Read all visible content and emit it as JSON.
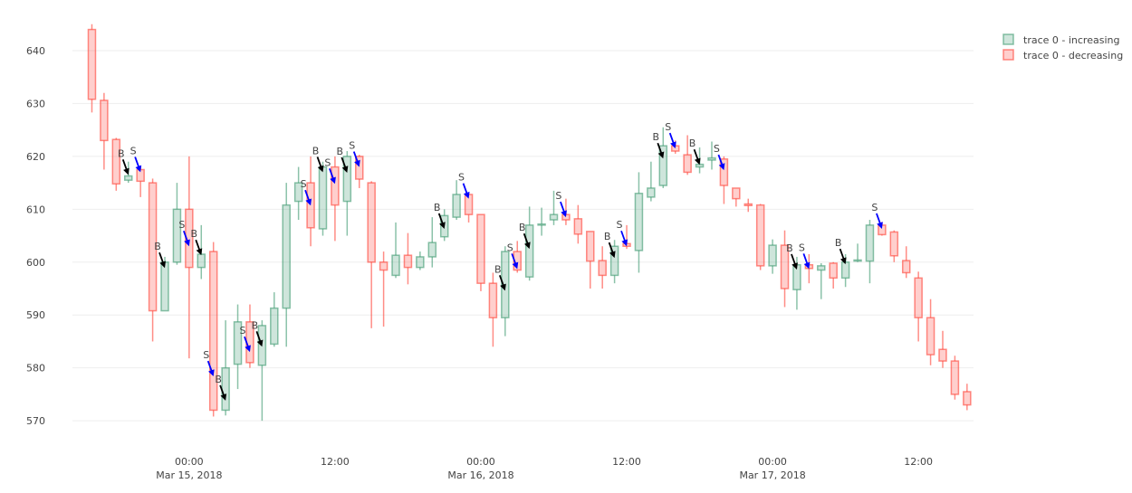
{
  "chart_data": {
    "type": "candlestick",
    "x": [
      "2018-03-14 16:00",
      "2018-03-14 17:00",
      "2018-03-14 18:00",
      "2018-03-14 19:00",
      "2018-03-14 20:00",
      "2018-03-14 21:00",
      "2018-03-14 22:00",
      "2018-03-14 23:00",
      "2018-03-15 00:00",
      "2018-03-15 01:00",
      "2018-03-15 02:00",
      "2018-03-15 03:00",
      "2018-03-15 04:00",
      "2018-03-15 05:00",
      "2018-03-15 06:00",
      "2018-03-15 07:00",
      "2018-03-15 08:00",
      "2018-03-15 09:00",
      "2018-03-15 10:00",
      "2018-03-15 11:00",
      "2018-03-15 12:00",
      "2018-03-15 13:00",
      "2018-03-15 14:00",
      "2018-03-15 15:00",
      "2018-03-15 16:00",
      "2018-03-15 17:00",
      "2018-03-15 18:00",
      "2018-03-15 19:00",
      "2018-03-15 20:00",
      "2018-03-15 21:00",
      "2018-03-15 22:00",
      "2018-03-15 23:00",
      "2018-03-16 00:00",
      "2018-03-16 01:00",
      "2018-03-16 02:00",
      "2018-03-16 03:00",
      "2018-03-16 04:00",
      "2018-03-16 05:00",
      "2018-03-16 06:00",
      "2018-03-16 07:00",
      "2018-03-16 08:00",
      "2018-03-16 09:00",
      "2018-03-16 10:00",
      "2018-03-16 11:00",
      "2018-03-16 12:00",
      "2018-03-16 13:00",
      "2018-03-16 14:00",
      "2018-03-16 15:00",
      "2018-03-16 16:00",
      "2018-03-16 17:00",
      "2018-03-16 18:00",
      "2018-03-16 19:00",
      "2018-03-16 20:00",
      "2018-03-16 21:00",
      "2018-03-16 22:00",
      "2018-03-16 23:00",
      "2018-03-17 00:00",
      "2018-03-17 01:00",
      "2018-03-17 02:00",
      "2018-03-17 03:00",
      "2018-03-17 04:00",
      "2018-03-17 05:00",
      "2018-03-17 06:00",
      "2018-03-17 07:00",
      "2018-03-17 08:00",
      "2018-03-17 09:00",
      "2018-03-17 10:00",
      "2018-03-17 11:00",
      "2018-03-17 12:00",
      "2018-03-17 13:00",
      "2018-03-17 14:00",
      "2018-03-17 15:00",
      "2018-03-17 16:00"
    ],
    "series": [
      {
        "name": "trace 0",
        "open": [
          644,
          630.6,
          623.2,
          615.5,
          617.5,
          615,
          590.8,
          600,
          610,
          599,
          602,
          572,
          580.7,
          588.7,
          580.5,
          584.5,
          591.3,
          611.5,
          615,
          606.3,
          618,
          611.5,
          620,
          615,
          600,
          597.5,
          601.3,
          599,
          601,
          604.8,
          608.5,
          612.8,
          609,
          596,
          589.5,
          602,
          597.2,
          607,
          608,
          609,
          608.2,
          605.8,
          600.3,
          597.5,
          603.5,
          602.2,
          612.3,
          614.5,
          622,
          620.3,
          618,
          619.3,
          619.5,
          614,
          611,
          610.8,
          599.3,
          603.2,
          594.8,
          599.5,
          598.5,
          599.8,
          597,
          600.2,
          600.2,
          607,
          605.7,
          600.3,
          597,
          589.5,
          583.5,
          581.3,
          575.5
        ],
        "high": [
          645,
          632,
          623.5,
          619,
          618,
          615.8,
          601,
          615,
          620,
          607,
          603.8,
          589,
          592,
          592,
          589,
          594.3,
          615,
          618,
          620,
          619,
          620,
          621,
          620.3,
          615.3,
          602,
          607.5,
          605.5,
          602,
          608.5,
          610,
          615.5,
          613,
          609,
          598,
          603,
          604,
          610.5,
          610.3,
          613.5,
          612,
          610.8,
          605.8,
          603,
          604.2,
          607,
          617,
          619,
          625.5,
          623,
          624,
          621.7,
          622.8,
          620,
          614,
          612,
          611,
          604.3,
          606,
          601,
          601.5,
          599.8,
          600,
          601.5,
          603.5,
          608,
          607.6,
          606,
          603,
          598.2,
          593,
          587,
          582.3,
          577
        ],
        "low": [
          628.3,
          617.5,
          613.5,
          615,
          612.3,
          585,
          590.8,
          599.5,
          581.8,
          596.8,
          570.8,
          571,
          576,
          580,
          570,
          584,
          584,
          608,
          603,
          605,
          604,
          605,
          614,
          587.5,
          587.8,
          597,
          595.8,
          598.5,
          599,
          604,
          608,
          607.5,
          594.5,
          584,
          586,
          598,
          596.5,
          605,
          607,
          607,
          603.5,
          595,
          595,
          596,
          602.5,
          598,
          611.5,
          614,
          620.5,
          616.5,
          616.8,
          617.5,
          611,
          610.5,
          609.5,
          598.5,
          597.8,
          591.5,
          591,
          596,
          593,
          595,
          595.3,
          600,
          596,
          605,
          600,
          597,
          585,
          580.5,
          580,
          574,
          572
        ],
        "close": [
          630.8,
          623,
          614.8,
          616.3,
          615.3,
          590.8,
          600,
          610,
          599,
          601.5,
          572,
          580,
          588.7,
          581,
          588,
          591.3,
          610.8,
          615,
          606.5,
          618,
          610.8,
          620,
          615.7,
          600,
          598.5,
          601.3,
          599,
          601,
          603.7,
          608.8,
          612.8,
          609,
          596,
          589.5,
          602,
          598.5,
          607,
          607.2,
          609,
          608,
          605.3,
          600.2,
          597.5,
          603,
          603,
          613,
          614,
          622,
          621,
          617,
          618.5,
          619.7,
          614.5,
          612,
          610.7,
          599.3,
          603.2,
          595,
          599.5,
          598.8,
          599.3,
          597,
          600,
          600.4,
          607,
          605.2,
          601.2,
          598,
          589.5,
          582.5,
          581.3,
          575,
          573
        ]
      }
    ],
    "increasing": {
      "name": "trace 0 - increasing",
      "color": "#3D9970"
    },
    "decreasing": {
      "name": "trace 0 - decreasing",
      "color": "#FF4136"
    },
    "annotations": [
      {
        "x": "2018-03-14 19:00",
        "y": 616.5,
        "text": "B",
        "arrowcolor": "#000000"
      },
      {
        "x": "2018-03-14 20:00",
        "y": 617,
        "text": "S",
        "arrowcolor": "#0000ff"
      },
      {
        "x": "2018-03-14 22:00",
        "y": 598.9,
        "text": "B",
        "arrowcolor": "#000000"
      },
      {
        "x": "2018-03-15 00:00",
        "y": 603,
        "text": "S",
        "arrowcolor": "#0000ff"
      },
      {
        "x": "2018-03-15 01:00",
        "y": 601.3,
        "text": "B",
        "arrowcolor": "#000000"
      },
      {
        "x": "2018-03-15 02:00",
        "y": 578.4,
        "text": "S",
        "arrowcolor": "#0000ff"
      },
      {
        "x": "2018-03-15 03:00",
        "y": 573.8,
        "text": "B",
        "arrowcolor": "#000000"
      },
      {
        "x": "2018-03-15 05:00",
        "y": 583,
        "text": "S",
        "arrowcolor": "#0000ff"
      },
      {
        "x": "2018-03-15 06:00",
        "y": 584,
        "text": "B",
        "arrowcolor": "#000000"
      },
      {
        "x": "2018-03-15 10:00",
        "y": 610.7,
        "text": "S",
        "arrowcolor": "#0000ff"
      },
      {
        "x": "2018-03-15 11:00",
        "y": 617,
        "text": "B",
        "arrowcolor": "#000000"
      },
      {
        "x": "2018-03-15 12:00",
        "y": 614.8,
        "text": "S",
        "arrowcolor": "#0000ff"
      },
      {
        "x": "2018-03-15 13:00",
        "y": 616.9,
        "text": "B",
        "arrowcolor": "#000000"
      },
      {
        "x": "2018-03-15 14:00",
        "y": 618,
        "text": "S",
        "arrowcolor": "#0000ff"
      },
      {
        "x": "2018-03-15 21:00",
        "y": 606.3,
        "text": "B",
        "arrowcolor": "#000000"
      },
      {
        "x": "2018-03-15 23:00",
        "y": 612,
        "text": "S",
        "arrowcolor": "#0000ff"
      },
      {
        "x": "2018-03-16 02:00",
        "y": 594.6,
        "text": "B",
        "arrowcolor": "#000000"
      },
      {
        "x": "2018-03-16 03:00",
        "y": 598.7,
        "text": "S",
        "arrowcolor": "#0000ff"
      },
      {
        "x": "2018-03-16 04:00",
        "y": 602.5,
        "text": "B",
        "arrowcolor": "#000000"
      },
      {
        "x": "2018-03-16 07:00",
        "y": 608.5,
        "text": "S",
        "arrowcolor": "#0000ff"
      },
      {
        "x": "2018-03-16 11:00",
        "y": 600.8,
        "text": "B",
        "arrowcolor": "#000000"
      },
      {
        "x": "2018-03-16 12:00",
        "y": 603,
        "text": "S",
        "arrowcolor": "#0000ff"
      },
      {
        "x": "2018-03-16 15:00",
        "y": 619.6,
        "text": "B",
        "arrowcolor": "#000000"
      },
      {
        "x": "2018-03-16 16:00",
        "y": 621.5,
        "text": "S",
        "arrowcolor": "#0000ff"
      },
      {
        "x": "2018-03-16 18:00",
        "y": 618.4,
        "text": "B",
        "arrowcolor": "#000000"
      },
      {
        "x": "2018-03-16 20:00",
        "y": 617.4,
        "text": "S",
        "arrowcolor": "#0000ff"
      },
      {
        "x": "2018-03-17 02:00",
        "y": 598.6,
        "text": "B",
        "arrowcolor": "#000000"
      },
      {
        "x": "2018-03-17 03:00",
        "y": 598.7,
        "text": "S",
        "arrowcolor": "#0000ff"
      },
      {
        "x": "2018-03-17 06:00",
        "y": 599.6,
        "text": "B",
        "arrowcolor": "#000000"
      },
      {
        "x": "2018-03-17 09:00",
        "y": 606.3,
        "text": "S",
        "arrowcolor": "#0000ff"
      }
    ],
    "xlim": [
      "2018-03-14 14:24",
      "2018-03-17 16:32"
    ],
    "xticks": [
      {
        "value": "2018-03-15 00:00",
        "label": "00:00\nMar 15, 2018"
      },
      {
        "value": "2018-03-15 12:00",
        "label": "12:00"
      },
      {
        "value": "2018-03-16 00:00",
        "label": "00:00\nMar 16, 2018"
      },
      {
        "value": "2018-03-16 12:00",
        "label": "12:00"
      },
      {
        "value": "2018-03-17 00:00",
        "label": "00:00\nMar 17, 2018"
      },
      {
        "value": "2018-03-17 12:00",
        "label": "12:00"
      }
    ],
    "ylim": [
      567.8,
      644.1
    ],
    "yticks": [
      570,
      580,
      590,
      600,
      610,
      620,
      630,
      640
    ],
    "grid": true
  }
}
